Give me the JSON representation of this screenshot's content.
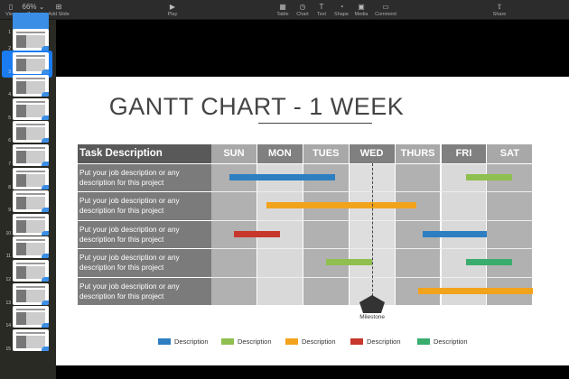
{
  "toolbar": {
    "items": [
      {
        "label": "View",
        "icon": "sidebar-icon",
        "glyph": "▯"
      },
      {
        "label": "Zoom",
        "icon": "zoom-menu",
        "glyph": "66% ⌄"
      },
      {
        "label": "Add Slide",
        "icon": "add-slide-icon",
        "glyph": "⊞"
      },
      {
        "label": "Play",
        "icon": "play-icon",
        "glyph": "▶"
      },
      {
        "label": "Table",
        "icon": "table-icon",
        "glyph": "▦"
      },
      {
        "label": "Chart",
        "icon": "chart-icon",
        "glyph": "◷"
      },
      {
        "label": "Text",
        "icon": "text-icon",
        "glyph": "T"
      },
      {
        "label": "Shape",
        "icon": "shape-icon",
        "glyph": "◔"
      },
      {
        "label": "Media",
        "icon": "media-icon",
        "glyph": "▣"
      },
      {
        "label": "Comment",
        "icon": "comment-icon",
        "glyph": "▭"
      },
      {
        "label": "Share",
        "icon": "share-icon",
        "glyph": "⇧"
      }
    ]
  },
  "sidebar": {
    "slides": [
      "1",
      "2",
      "3",
      "4",
      "5",
      "6",
      "7",
      "8",
      "9",
      "10",
      "11",
      "12",
      "13",
      "14",
      "15"
    ],
    "selected": "2"
  },
  "slide": {
    "title": "GANTT CHART - 1 WEEK",
    "task_header": "Task Description",
    "days": [
      "SUN",
      "MON",
      "TUES",
      "WED",
      "THURS",
      "FRI",
      "SAT"
    ],
    "tasks": [
      "Put your job description or any description for this project",
      "Put your job description or any description for this project",
      "Put your job description or any description for this project",
      "Put your job description or any description for this project",
      "Put your job description or any description for this project"
    ],
    "bars": [
      {
        "row": 0,
        "start": 0.4,
        "end": 2.7,
        "color": "#2e7fc1"
      },
      {
        "row": 0,
        "start": 5.55,
        "end": 6.55,
        "color": "#8fbf4f"
      },
      {
        "row": 1,
        "start": 1.2,
        "end": 4.45,
        "color": "#f2a31c"
      },
      {
        "row": 2,
        "start": 0.5,
        "end": 1.5,
        "color": "#c7372b"
      },
      {
        "row": 2,
        "start": 4.6,
        "end": 6.0,
        "color": "#2e7fc1"
      },
      {
        "row": 3,
        "start": 2.5,
        "end": 3.5,
        "color": "#8fbf4f"
      },
      {
        "row": 3,
        "start": 5.55,
        "end": 6.55,
        "color": "#3aad6e"
      },
      {
        "row": 4,
        "start": 4.5,
        "end": 7.0,
        "color": "#f2a31c"
      }
    ],
    "milestone": {
      "label": "Milestone",
      "day": 3.5
    },
    "legend": [
      {
        "label": "Description",
        "color": "#2e7fc1"
      },
      {
        "label": "Description",
        "color": "#8fbf4f"
      },
      {
        "label": "Description",
        "color": "#f2a31c"
      },
      {
        "label": "Description",
        "color": "#c7372b"
      },
      {
        "label": "Description",
        "color": "#3aad6e"
      }
    ]
  }
}
